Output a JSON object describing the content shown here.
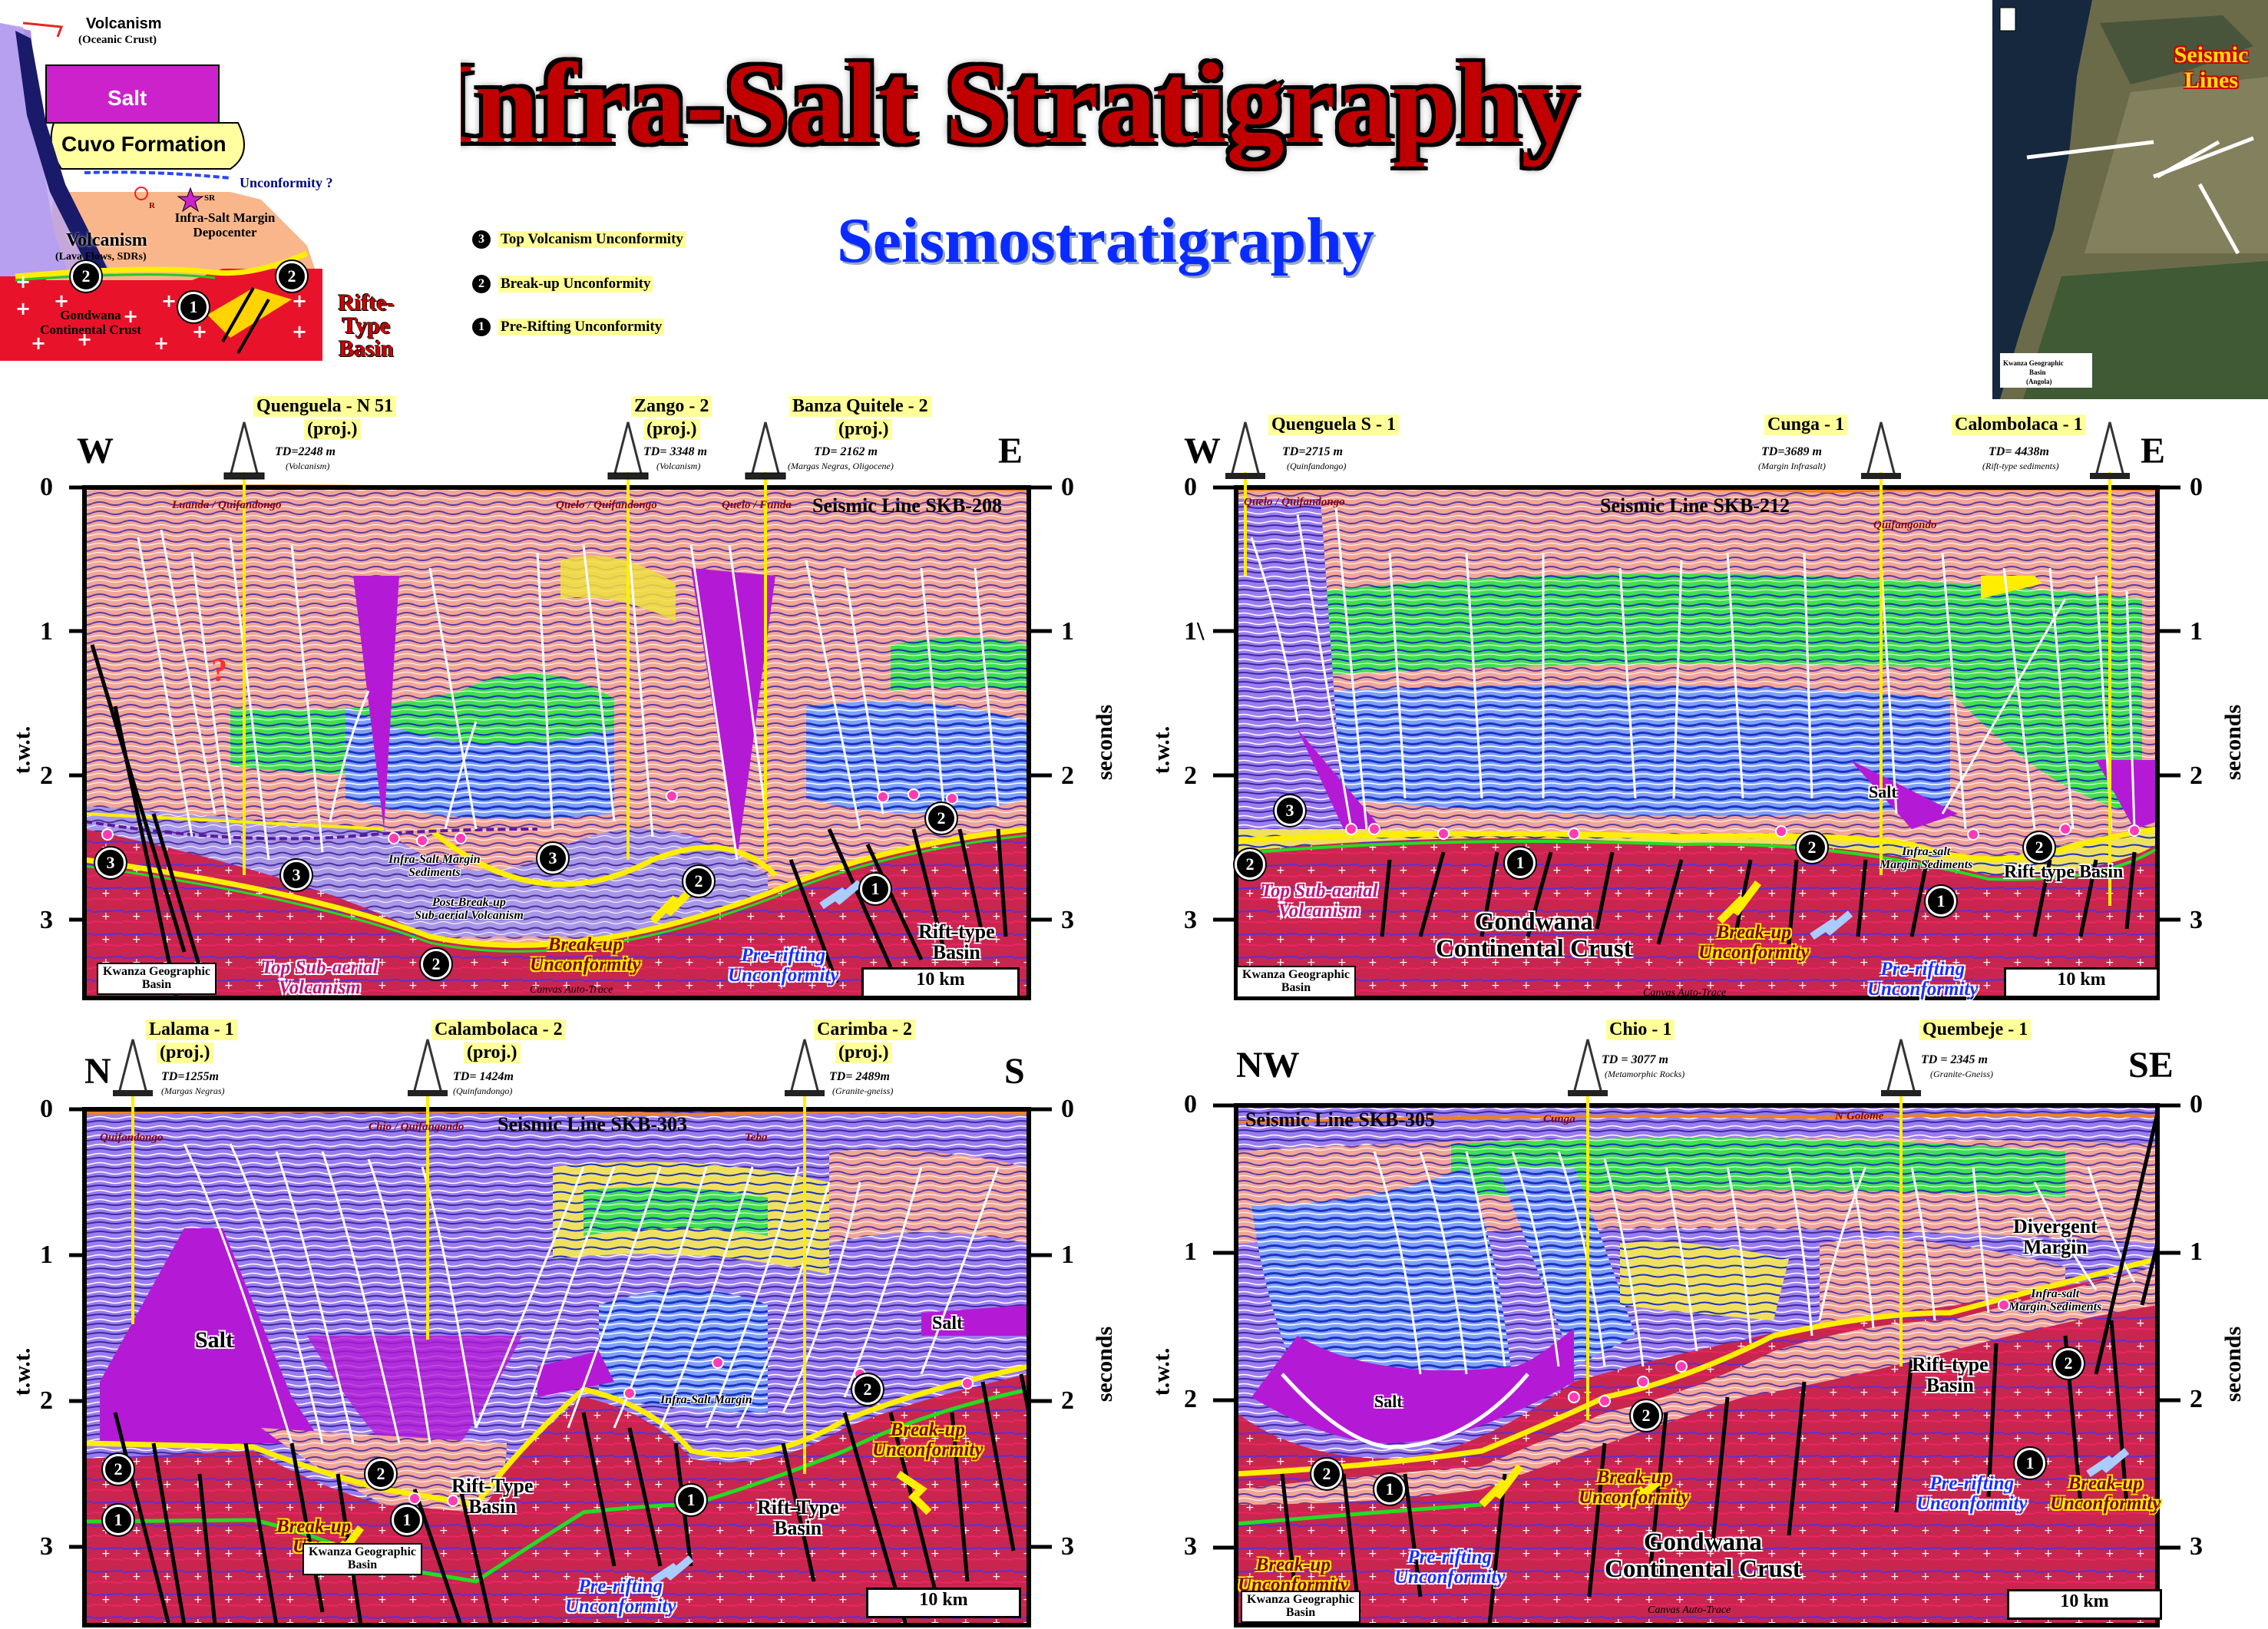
{
  "title": "Infra-Salt Stratigraphy",
  "subtitle": "Seismostratigraphy",
  "legend": [
    {
      "num": "3",
      "text": "Top Volcanism Unconformity"
    },
    {
      "num": "2",
      "text": "Break-up Unconformity"
    },
    {
      "num": "1",
      "text": "Pre-Rifting Unconformity"
    }
  ],
  "schematic": {
    "volcanism_oceanic": "Volcanism",
    "oceanic_crust": "(Oceanic Crust)",
    "salt": "Salt",
    "cuvo": "Cuvo Formation",
    "unconformity": "Unconformity ?",
    "r": "R",
    "sr": "SR",
    "infrasalt": "Infra-Salt Margin Depocenter",
    "volcanism": "Volcanism",
    "volcanism_sub": "(Lava Flows, SDRs)",
    "gondwana": "Gondwana Continental Crust",
    "rift": "Rifte-Type Basin",
    "n1": "1",
    "n2": "2"
  },
  "map": {
    "label": "Seismic Lines",
    "caption1": "Kwanza Geographic",
    "caption2": "Basin",
    "caption3": "(Angola)"
  },
  "common": {
    "twt": "t.w.t.",
    "seconds": "seconds",
    "scale": "10 km",
    "credit": "Cramez",
    "canvas": "Canvas Auto-Trace",
    "basin1": "Kwanza Geographic",
    "basin2": "Basin",
    "ticks_left": [
      "0",
      "1",
      "2",
      "3"
    ],
    "ticks_right": [
      "0",
      "1",
      "2",
      "3"
    ]
  },
  "panels": {
    "p1": {
      "left": "W",
      "right": "E",
      "line": "Seismic Line SKB-208",
      "wells": [
        {
          "name": "Quenguela - N 51",
          "proj": "(proj.)",
          "td": "TD=2248 m",
          "sub": "(Volcanism)"
        },
        {
          "name": "Zango - 2",
          "proj": "(proj.)",
          "td": "TD= 3348 m",
          "sub": "(Volcanism)"
        },
        {
          "name": "Banza Quitele - 2",
          "proj": "(proj.)",
          "td": "TD= 2162 m",
          "sub": "(Margas Negras, Oligocene)"
        }
      ],
      "formations": [
        "Luanda / Quifandongo",
        "Quelo / Quifandongo",
        "Quelo / Funda"
      ],
      "ann": {
        "infra": "Infra-Salt Margin",
        "infra2": "Sediments",
        "post": "Post-Break-up",
        "post2": "Sub-aerial Volcanism",
        "top": "Top Sub-aerial",
        "top2": "Volcanism",
        "breakup": "Break-up",
        "breakup2": "Unconformity",
        "prerift": "Pre-rifting",
        "prerift2": "Unconformity",
        "rift": "Rift-type",
        "rift2": "Basin",
        "q": "?"
      }
    },
    "p2": {
      "left": "W",
      "right": "E",
      "line": "Seismic Line SKB-212",
      "wells": [
        {
          "name": "Quenguela S - 1",
          "td": "TD=2715 m",
          "sub": "(Quinfandongo)"
        },
        {
          "name": "Cunga - 1",
          "td": "TD=3689 m",
          "sub": "(Margin Infrasalt)"
        },
        {
          "name": "Calombolaca - 1",
          "td": "TD= 4438m",
          "sub": "(Rift-type sediments)"
        }
      ],
      "formations": [
        "Quelo / Quifandongo",
        "Quifangondo"
      ],
      "ann": {
        "salt": "Salt",
        "infra": "Infra-salt",
        "infra2": "Margin Sediments",
        "rift": "Rift-type Basin",
        "top": "Top Sub-aerial",
        "top2": "Volcanism",
        "gond": "Gondwana",
        "gond2": "Continental Crust",
        "breakup": "Break-up",
        "breakup2": "Unconformity",
        "prerift": "Pre-rifting",
        "prerift2": "Unconformity",
        "tick1": "1\\"
      }
    },
    "p3": {
      "left": "N",
      "right": "S",
      "line": "Seismic Line SKB-303",
      "wells": [
        {
          "name": "Lalama - 1",
          "proj": "(proj.)",
          "td": "TD=1255m",
          "sub": "(Margas Negras)"
        },
        {
          "name": "Calambolaca - 2",
          "proj": "(proj.)",
          "td": "TD= 1424m",
          "sub": "(Quinfandongo)"
        },
        {
          "name": "Carimba - 2",
          "proj": "(proj.)",
          "td": "TD= 2489m",
          "sub": "(Granite-gneiss)"
        }
      ],
      "formations": [
        "Quifandongo",
        "Chio / Quifangondo",
        "Teba"
      ],
      "ann": {
        "salt": "Salt",
        "salt2": "Salt",
        "infra": "Infra-Salt Margin",
        "rift": "Rift-Type",
        "rift2": "Basin",
        "rift3": "Rift-Type",
        "rift4": "Basin",
        "breakup": "Break-up",
        "breakup2": "Unconformity",
        "breakupL": "Break-up",
        "breakupL2": "Unco",
        "prerift": "Pre-rifting",
        "prerift2": "Unconformity"
      }
    },
    "p4": {
      "left": "NW",
      "right": "SE",
      "line": "Seismic Line SKB-305",
      "wells": [
        {
          "name": "Chio - 1",
          "td": "TD = 3077 m",
          "sub": "(Metamorphic Rocks)"
        },
        {
          "name": "Quembeje - 1",
          "td": "TD = 2345 m",
          "sub": "(Granite-Gneiss)"
        }
      ],
      "formations": [
        "Cunga",
        "N'Golome"
      ],
      "ann": {
        "salt": "Salt",
        "div": "Divergent",
        "div2": "Margin",
        "infra": "Infra-salt",
        "infra2": "Margin Sediments",
        "rift": "Rift-type",
        "rift2": "Basin",
        "gond": "Gondwana",
        "gond2": "Continental Crust",
        "breakupL": "Break-up",
        "breakupL2": "Unconformity",
        "breakupM": "Break-up",
        "breakupM2": "Unconformity",
        "breakupR": "Break-up",
        "breakupR2": "Unconformity",
        "prerift": "Pre-rifting",
        "prerift2": "Unconformity",
        "prerift3": "Pre-rifting",
        "prerift4": "Unconformity"
      }
    }
  },
  "colors": {
    "crust": "#c8264e",
    "salt": "#9b1fd6",
    "volcanism": "#8c7ad6",
    "seis_blue": "#3a6cf0",
    "seis_green": "#2ee04a",
    "seis_salmon": "#f0a090",
    "unconf_yellow": "#ffee00",
    "unconf_green": "#22dd22"
  }
}
